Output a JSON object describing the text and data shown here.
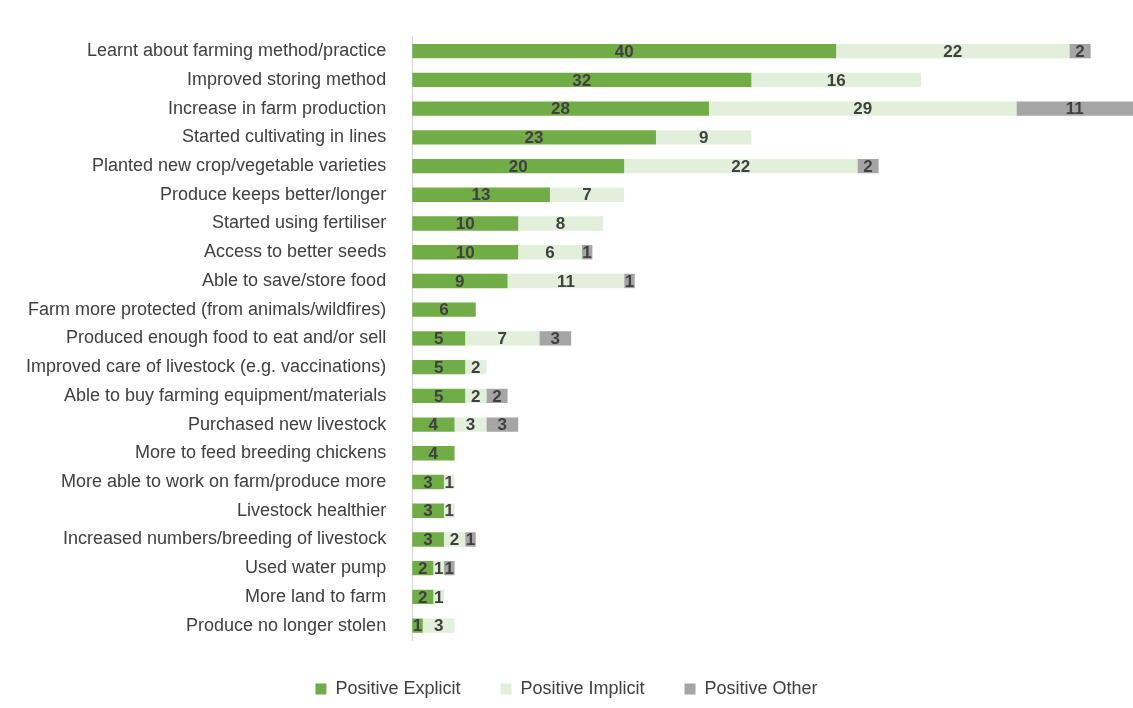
{
  "chart_data": {
    "type": "bar",
    "orientation": "horizontal",
    "stacked": true,
    "data_labels": true,
    "legend": "bottom",
    "grid": false,
    "tick_labels": "y",
    "xlim": [
      0,
      68
    ],
    "categories": [
      "Learnt about farming method/practice",
      "Improved storing method",
      "Increase in farm production",
      "Started cultivating in lines",
      "Planted new crop/vegetable varieties",
      "Produce keeps better/longer",
      "Started using fertiliser",
      "Access to better seeds",
      "Able to save/store food",
      "Farm more protected (from animals/wildfires)",
      "Produced enough food to eat and/or sell",
      "Improved care of livestock (e.g. vaccinations)",
      "Able to buy farming equipment/materials",
      "Purchased new livestock",
      "More to feed breeding chickens",
      "More able to work on farm/produce more",
      "Livestock healthier",
      "Increased numbers/breeding of livestock",
      "Used water pump",
      "More land to farm",
      "Produce no longer stolen"
    ],
    "series": [
      {
        "name": "Positive Explicit",
        "color": "#70ad47",
        "values": [
          40,
          32,
          28,
          23,
          20,
          13,
          10,
          10,
          9,
          6,
          5,
          5,
          5,
          4,
          4,
          3,
          3,
          3,
          2,
          2,
          1
        ]
      },
      {
        "name": "Positive Implicit",
        "color": "#e2efda",
        "values": [
          22,
          16,
          29,
          9,
          22,
          7,
          8,
          6,
          11,
          null,
          7,
          2,
          2,
          3,
          null,
          1,
          1,
          2,
          1,
          1,
          3
        ]
      },
      {
        "name": "Positive Other",
        "color": "#a5a5a5",
        "values": [
          2,
          null,
          11,
          null,
          2,
          null,
          null,
          1,
          1,
          null,
          3,
          null,
          2,
          3,
          null,
          null,
          null,
          1,
          1,
          null,
          null
        ]
      }
    ]
  }
}
